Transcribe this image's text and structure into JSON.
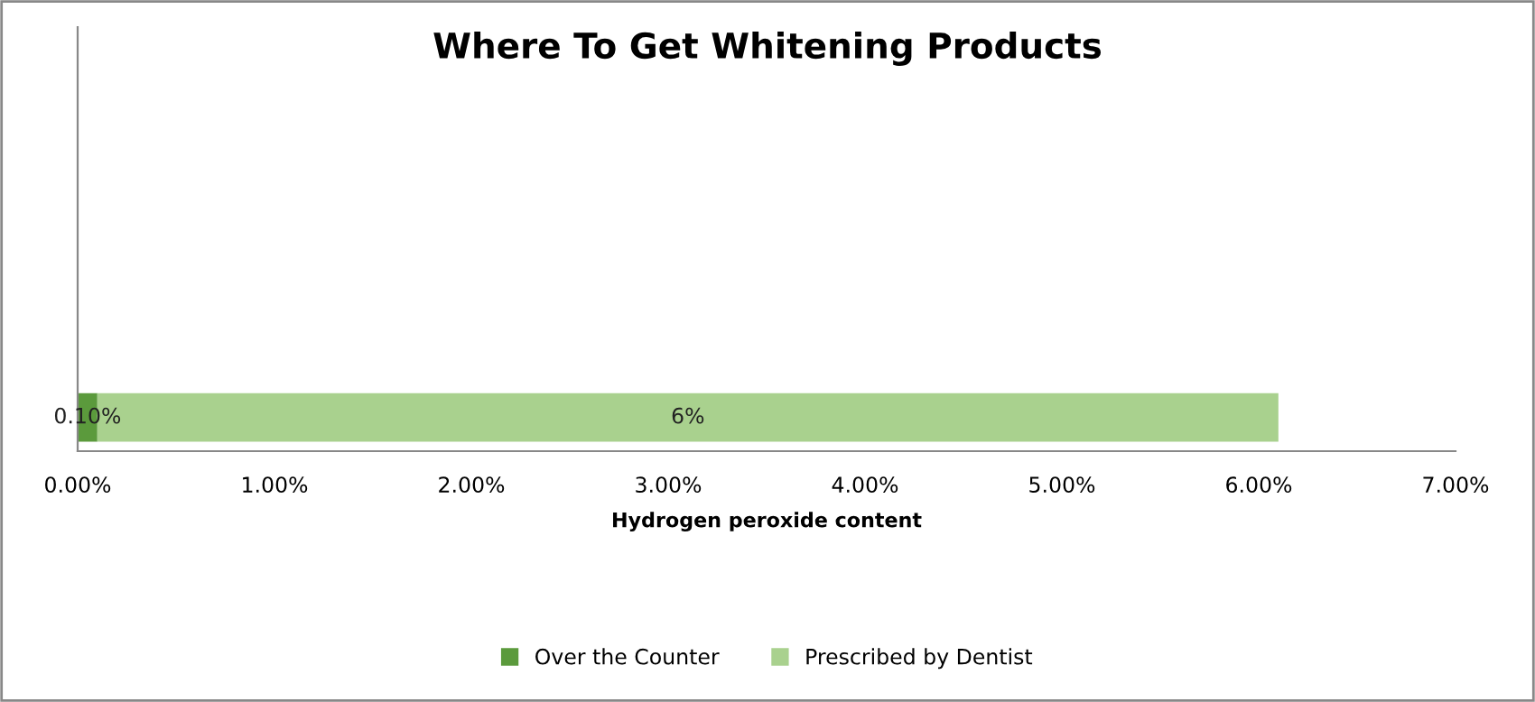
{
  "chart_data": {
    "type": "bar",
    "orientation": "horizontal",
    "stacked": true,
    "title": "Where To Get Whitening Products",
    "xlabel": "Hydrogen peroxide content",
    "categories": [
      null
    ],
    "series": [
      {
        "name": "Over the Counter",
        "color": "#5b9a3c",
        "values": [
          0.1
        ],
        "value_labels": [
          "0.10%"
        ]
      },
      {
        "name": "Prescribed by Dentist",
        "color": "#a9d18e",
        "values": [
          6
        ],
        "value_labels": [
          "6%"
        ]
      }
    ],
    "xlim": [
      0,
      7
    ],
    "xticks": [
      {
        "value": 0,
        "label": "0.00%"
      },
      {
        "value": 1,
        "label": "1.00%"
      },
      {
        "value": 2,
        "label": "2.00%"
      },
      {
        "value": 3,
        "label": "3.00%"
      },
      {
        "value": 4,
        "label": "4.00%"
      },
      {
        "value": 5,
        "label": "5.00%"
      },
      {
        "value": 6,
        "label": "6.00%"
      },
      {
        "value": 7,
        "label": "7.00%"
      }
    ],
    "grid": false,
    "legend": "bottom"
  }
}
